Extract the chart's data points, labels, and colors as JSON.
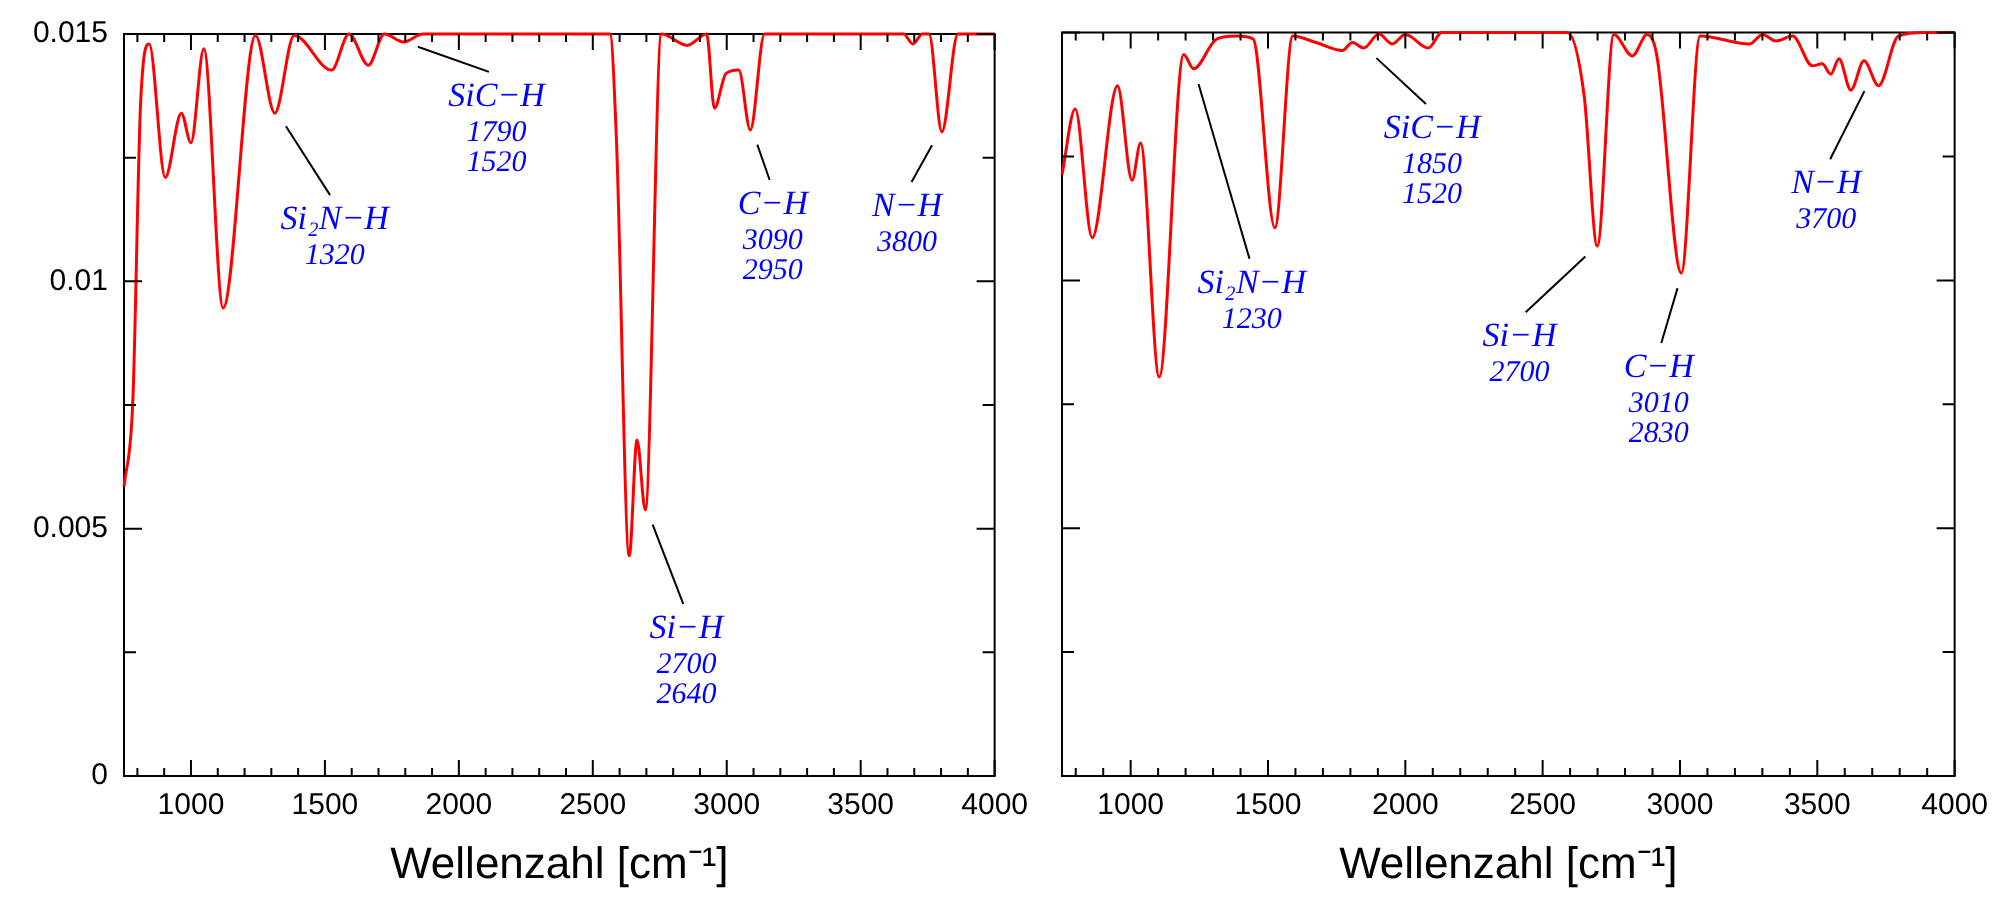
{
  "chart_data": [
    {
      "type": "line",
      "xlabel": "Wellenzahl [cm⁻¹]",
      "color": "#ff0000",
      "marker": "none",
      "xlim": [
        750,
        4000
      ],
      "ylim": [
        0,
        0.015
      ],
      "xticks": [
        {
          "value": 800,
          "label": null
        },
        {
          "value": 900,
          "label": null
        },
        1000,
        {
          "value": 1100,
          "label": null
        },
        {
          "value": 1200,
          "label": null
        },
        {
          "value": 1300,
          "label": null
        },
        {
          "value": 1400,
          "label": null
        },
        1500,
        {
          "value": 1600,
          "label": null
        },
        {
          "value": 1700,
          "label": null
        },
        {
          "value": 1800,
          "label": null
        },
        {
          "value": 1900,
          "label": null
        },
        2000,
        {
          "value": 2100,
          "label": null
        },
        {
          "value": 2200,
          "label": null
        },
        {
          "value": 2300,
          "label": null
        },
        {
          "value": 2400,
          "label": null
        },
        2500,
        {
          "value": 2600,
          "label": null
        },
        {
          "value": 2700,
          "label": null
        },
        {
          "value": 2800,
          "label": null
        },
        {
          "value": 2900,
          "label": null
        },
        3000,
        {
          "value": 3100,
          "label": null
        },
        {
          "value": 3200,
          "label": null
        },
        {
          "value": 3300,
          "label": null
        },
        {
          "value": 3400,
          "label": null
        },
        3500,
        {
          "value": 3600,
          "label": null
        },
        {
          "value": 3700,
          "label": null
        },
        {
          "value": 3800,
          "label": null
        },
        {
          "value": 3900,
          "label": null
        },
        4000
      ],
      "yticks": [
        0,
        {
          "value": 0.0025,
          "label": null
        },
        0.005,
        {
          "value": 0.0075,
          "label": null
        },
        0.01,
        {
          "value": 0.0125,
          "label": null
        },
        0.015
      ],
      "x": [
        750,
        783,
        812,
        844,
        904,
        964,
        1000,
        1048,
        1120,
        1241,
        1313,
        1385,
        1525,
        1590,
        1662,
        1722,
        1794,
        1866,
        2564,
        2588,
        2636,
        2665,
        2696,
        2756,
        2853,
        2925,
        2954,
        2997,
        3045,
        3088,
        3141,
        3660,
        3695,
        3730,
        3755,
        3803,
        3863,
        4000
      ],
      "values": [
        0.00585,
        0.00759,
        0.0136,
        0.0148,
        0.0121,
        0.0134,
        0.0128,
        0.0147,
        0.00946,
        0.01497,
        0.0134,
        0.01497,
        0.01427,
        0.015,
        0.01437,
        0.015,
        0.01484,
        0.015,
        0.015,
        0.0129,
        0.00445,
        0.00679,
        0.00538,
        0.015,
        0.01477,
        0.015,
        0.0135,
        0.0142,
        0.01427,
        0.01306,
        0.015,
        0.015,
        0.0148,
        0.015,
        0.015,
        0.01302,
        0.015,
        0.015
      ],
      "annotations": [
        {
          "text": "SiC−H\n1790\n1520",
          "x": 1790,
          "y": 0.01484
        },
        {
          "text": "Si₂N−H\n1320",
          "x": 1320,
          "y": 0.0134
        },
        {
          "text": "Si−H\n2700\n2640",
          "x": 2700,
          "y": 0.00538
        },
        {
          "text": "C−H\n3090\n2950",
          "x": 3090,
          "y": 0.01306
        },
        {
          "text": "N−H\n3800",
          "x": 3800,
          "y": 0.01302
        }
      ]
    },
    {
      "type": "line",
      "xlabel": "Wellenzahl [cm⁻¹]",
      "color": "#ff0000",
      "marker": "none",
      "xlim": [
        750,
        4000
      ],
      "ylim": [
        0,
        0.015
      ],
      "tick_labels": "x",
      "xticks": [
        {
          "value": 800,
          "label": null
        },
        {
          "value": 900,
          "label": null
        },
        1000,
        {
          "value": 1100,
          "label": null
        },
        {
          "value": 1200,
          "label": null
        },
        {
          "value": 1300,
          "label": null
        },
        {
          "value": 1400,
          "label": null
        },
        1500,
        {
          "value": 1600,
          "label": null
        },
        {
          "value": 1700,
          "label": null
        },
        {
          "value": 1800,
          "label": null
        },
        {
          "value": 1900,
          "label": null
        },
        2000,
        {
          "value": 2100,
          "label": null
        },
        {
          "value": 2200,
          "label": null
        },
        {
          "value": 2300,
          "label": null
        },
        {
          "value": 2400,
          "label": null
        },
        2500,
        {
          "value": 2600,
          "label": null
        },
        {
          "value": 2700,
          "label": null
        },
        {
          "value": 2800,
          "label": null
        },
        {
          "value": 2900,
          "label": null
        },
        3000,
        {
          "value": 3100,
          "label": null
        },
        {
          "value": 3200,
          "label": null
        },
        {
          "value": 3300,
          "label": null
        },
        {
          "value": 3400,
          "label": null
        },
        3500,
        {
          "value": 3600,
          "label": null
        },
        {
          "value": 3700,
          "label": null
        },
        {
          "value": 3800,
          "label": null
        },
        {
          "value": 3900,
          "label": null
        },
        4000
      ],
      "yticks": [
        0,
        {
          "value": 0.0025,
          "label": null
        },
        0.005,
        {
          "value": 0.0075,
          "label": null
        },
        0.01,
        {
          "value": 0.0125,
          "label": null
        },
        0.015
      ],
      "x": [
        750,
        798,
        860,
        952,
        1005,
        1036,
        1104,
        1193,
        1229,
        1313,
        1386,
        1446,
        1525,
        1590,
        1675,
        1771,
        1807,
        1848,
        1904,
        1952,
        2000,
        2084,
        2133,
        2590,
        2651,
        2699,
        2759,
        2827,
        2880,
        2916,
        3005,
        3073,
        3253,
        3301,
        3349,
        3410,
        3482,
        3518,
        3549,
        3579,
        3622,
        3670,
        3723,
        3795,
        3892,
        4000
      ],
      "values": [
        0.01213,
        0.01346,
        0.01086,
        0.01393,
        0.01202,
        0.01277,
        0.00805,
        0.01456,
        0.01427,
        0.01487,
        0.01493,
        0.01487,
        0.01106,
        0.01493,
        0.0148,
        0.01464,
        0.0148,
        0.01469,
        0.01497,
        0.01477,
        0.01496,
        0.01469,
        0.015,
        0.015,
        0.01373,
        0.01069,
        0.01496,
        0.01453,
        0.01496,
        0.01453,
        0.01015,
        0.01493,
        0.01477,
        0.01496,
        0.01483,
        0.01493,
        0.01433,
        0.01437,
        0.01416,
        0.01447,
        0.01384,
        0.01443,
        0.01393,
        0.01493,
        0.015,
        0.015
      ],
      "annotations": [
        {
          "text": "Si₂N−H\n1230",
          "x": 1230,
          "y": 0.01427
        },
        {
          "text": "SiC−H\n1850\n1520",
          "x": 1850,
          "y": 0.01469
        },
        {
          "text": "Si−H\n2700",
          "x": 2700,
          "y": 0.01069
        },
        {
          "text": "C−H\n3010\n2830",
          "x": 3010,
          "y": 0.01015
        },
        {
          "text": "N−H\n3700",
          "x": 3700,
          "y": 0.0141
        }
      ]
    }
  ]
}
